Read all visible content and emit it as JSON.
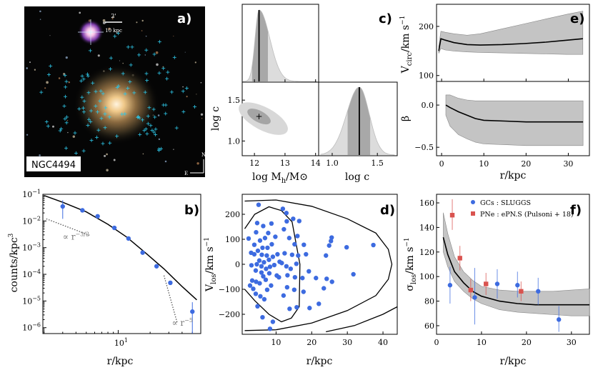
{
  "panels": {
    "a": {
      "letter": "a)",
      "galaxy_name": "NGC4494",
      "scale_arcmin": "2'",
      "scale_kpc": "10 kpc",
      "compass_n": "N",
      "compass_e": "E",
      "sky_color": "#050505",
      "marker_color": "#2ec7e8"
    },
    "b": {
      "letter": "b)"
    },
    "c": {
      "letter": "c)"
    },
    "d": {
      "letter": "d)"
    },
    "e": {
      "letter": "e)"
    },
    "f": {
      "letter": "f)"
    }
  },
  "colors": {
    "gc_blue": "#3d6be0",
    "pne_red": "#d9534f",
    "band_gray": "#b0b0b0"
  },
  "chart_data": [
    {
      "id": "b",
      "type": "scatter",
      "title": "",
      "xlabel": "r/kpc",
      "ylabel": "counts/kpc^3",
      "xscale": "log",
      "yscale": "log",
      "xlim": [
        1.95,
        60
      ],
      "ylim": [
        6e-07,
        0.1
      ],
      "xtick_labels": [
        "10^1"
      ],
      "ytick_labels": [
        "10^-6",
        "10^-5",
        "10^-4",
        "10^-3",
        "10^-2",
        "10^-1"
      ],
      "points": [
        {
          "x": 3.0,
          "y": 0.035,
          "ylo": 0.012,
          "yhi": 0.06
        },
        {
          "x": 4.6,
          "y": 0.025
        },
        {
          "x": 6.4,
          "y": 0.015
        },
        {
          "x": 9.2,
          "y": 0.0055
        },
        {
          "x": 12.5,
          "y": 0.0022
        },
        {
          "x": 17.0,
          "y": 0.00065
        },
        {
          "x": 23.0,
          "y": 0.0002
        },
        {
          "x": 31.0,
          "y": 4.8e-05
        },
        {
          "x": 50.0,
          "y": 4e-06,
          "ylo": 6e-07,
          "yhi": 9e-06
        }
      ],
      "model_curve": {
        "x": [
          2,
          3,
          5,
          8,
          12,
          18,
          27,
          40,
          55
        ],
        "y": [
          0.09,
          0.05,
          0.022,
          0.0075,
          0.0025,
          0.00065,
          0.00016,
          3.5e-05,
          1.1e-05
        ]
      },
      "annotations": [
        {
          "text": "∝ r^-3/2",
          "x": 3.0,
          "y": 0.002
        },
        {
          "text": "∝ r^-5",
          "x": 32,
          "y": 1.2e-06
        }
      ],
      "guide_lines": [
        {
          "x": [
            2.1,
            5.5
          ],
          "y": [
            0.012,
            0.0028
          ]
        },
        {
          "x": [
            27,
            36
          ],
          "y": [
            9e-05,
            1.5e-06
          ]
        }
      ]
    },
    {
      "id": "c",
      "type": "corner",
      "params": [
        "log M_h/M_⊙",
        "log c"
      ],
      "xlabel_left": "log M_h/M_⊙",
      "ylabel_left": "log c",
      "xlabel_right": "log c",
      "x1_ticks": [
        "12",
        "13",
        "14"
      ],
      "x1_lim": [
        11.6,
        14.1
      ],
      "x2_ticks": [
        "1.0",
        "1.5"
      ],
      "x2_lim": [
        0.85,
        1.72
      ],
      "y_ticks": [
        "1.0",
        "1.5"
      ],
      "y_lim": [
        0.82,
        1.72
      ],
      "mass_best": 12.15,
      "mass_median_lines": [
        11.9,
        12.2,
        12.45
      ],
      "conc_best": 1.3,
      "conc_median_lines": [
        1.17,
        1.3,
        1.42
      ],
      "joint_best": {
        "x": 12.15,
        "y": 1.3
      }
    },
    {
      "id": "d",
      "type": "scatter",
      "xlabel": "r/kpc",
      "ylabel": "V_los/km s^-1",
      "xlim": [
        0.5,
        44
      ],
      "ylim": [
        -280,
        280
      ],
      "xtick_labels": [
        "10",
        "20",
        "30",
        "40"
      ],
      "ytick_labels": [
        "-200",
        "-100",
        "0",
        "100",
        "200"
      ],
      "points": [
        [
          5.1,
          238
        ],
        [
          4.7,
          165
        ],
        [
          2.3,
          103
        ],
        [
          6.4,
          153
        ],
        [
          8.7,
          163
        ],
        [
          9.8,
          110
        ],
        [
          4.4,
          128
        ],
        [
          7.8,
          125
        ],
        [
          6.9,
          105
        ],
        [
          5.5,
          95
        ],
        [
          3.9,
          78
        ],
        [
          8.8,
          80
        ],
        [
          7.6,
          66
        ],
        [
          6.2,
          66
        ],
        [
          4.9,
          54
        ],
        [
          3.0,
          46
        ],
        [
          3.9,
          40
        ],
        [
          6.0,
          38
        ],
        [
          7.4,
          35
        ],
        [
          9.1,
          30
        ],
        [
          8.0,
          18
        ],
        [
          5.3,
          15
        ],
        [
          6.6,
          8
        ],
        [
          4.6,
          0
        ],
        [
          3.1,
          -4
        ],
        [
          5.9,
          -8
        ],
        [
          8.3,
          -10
        ],
        [
          9.5,
          -3
        ],
        [
          7.2,
          -18
        ],
        [
          4.3,
          -25
        ],
        [
          5.9,
          -33
        ],
        [
          8.1,
          -36
        ],
        [
          6.4,
          -48
        ],
        [
          3.3,
          -65
        ],
        [
          4.4,
          -70
        ],
        [
          5.4,
          -76
        ],
        [
          7.1,
          -62
        ],
        [
          2.7,
          -85
        ],
        [
          3.6,
          -98
        ],
        [
          4.3,
          -118
        ],
        [
          5.6,
          -128
        ],
        [
          6.7,
          -140
        ],
        [
          4.8,
          -168
        ],
        [
          7.5,
          -102
        ],
        [
          8.6,
          -85
        ],
        [
          10.2,
          -45
        ],
        [
          10.8,
          -52
        ],
        [
          11.0,
          10
        ],
        [
          10.4,
          40
        ],
        [
          11.9,
          222
        ],
        [
          12.9,
          205
        ],
        [
          13.0,
          172
        ],
        [
          14.8,
          182
        ],
        [
          16.5,
          173
        ],
        [
          12.2,
          140
        ],
        [
          13.7,
          105
        ],
        [
          16.0,
          113
        ],
        [
          15.2,
          80
        ],
        [
          17.8,
          78
        ],
        [
          12.4,
          44
        ],
        [
          14.5,
          38
        ],
        [
          16.2,
          35
        ],
        [
          18.4,
          40
        ],
        [
          11.6,
          5
        ],
        [
          12.9,
          -8
        ],
        [
          14.1,
          -18
        ],
        [
          15.7,
          2
        ],
        [
          13.2,
          -44
        ],
        [
          15.3,
          -52
        ],
        [
          17.4,
          -55
        ],
        [
          19.2,
          -28
        ],
        [
          13.1,
          -92
        ],
        [
          15.1,
          -102
        ],
        [
          17.7,
          -110
        ],
        [
          12.1,
          -125
        ],
        [
          13.8,
          -178
        ],
        [
          15.8,
          -172
        ],
        [
          19.4,
          -175
        ],
        [
          22.0,
          -158
        ],
        [
          23.4,
          -96
        ],
        [
          24.2,
          -58
        ],
        [
          21.2,
          -55
        ],
        [
          25.7,
          -70
        ],
        [
          24.0,
          35
        ],
        [
          25.4,
          93
        ],
        [
          25.6,
          107
        ],
        [
          24.9,
          75
        ],
        [
          29.8,
          68
        ],
        [
          31.7,
          -40
        ],
        [
          37.3,
          77
        ],
        [
          9.1,
          -230
        ],
        [
          8.3,
          -258
        ],
        [
          6.2,
          -212
        ]
      ],
      "contours": [
        {
          "x": [
            1.2,
            4,
            8,
            11.5,
            14.5,
            16.7,
            16.5,
            14.3,
            11.5,
            8,
            4,
            1.2
          ],
          "y": [
            142,
            200,
            230,
            215,
            170,
            0,
            -170,
            -215,
            -230,
            -200,
            -145,
            -100
          ]
        },
        {
          "x": [
            1.2,
            10,
            20,
            30,
            38,
            41.5,
            42.5,
            41.5,
            38,
            30,
            20,
            10,
            1.2
          ],
          "y": [
            253,
            257,
            232,
            182,
            125,
            60,
            0,
            -60,
            -125,
            -185,
            -235,
            -262,
            -265
          ]
        },
        {
          "x": [
            24,
            32,
            40,
            44
          ],
          "y": [
            -270,
            -245,
            -200,
            -170
          ]
        }
      ]
    },
    {
      "id": "e",
      "type": "area",
      "subplots": [
        {
          "ylabel": "V_circ/km s^-1",
          "xlim": [
            0,
            35
          ],
          "ylim": [
            88,
            245
          ],
          "ytick_labels": [
            "100",
            "200"
          ],
          "x": [
            0.5,
            1.0,
            2.0,
            4.0,
            7.0,
            10.0,
            15.0,
            20.0,
            25.0,
            30.0,
            33.5
          ],
          "median": [
            150,
            175,
            172,
            167,
            163,
            162,
            163,
            165,
            168,
            172,
            175
          ],
          "lower": [
            145,
            155,
            152,
            150,
            148,
            147,
            146,
            145,
            144,
            143,
            143
          ],
          "upper": [
            160,
            190,
            188,
            185,
            182,
            185,
            195,
            205,
            215,
            225,
            231
          ]
        },
        {
          "ylabel": "β",
          "xlabel": "r/kpc",
          "xlim": [
            -1.2,
            35
          ],
          "ylim": [
            -0.6,
            0.28
          ],
          "xtick_labels": [
            "0",
            "10",
            "20",
            "30"
          ],
          "ytick_labels": [
            "0.0",
            "-0.5"
          ],
          "x": [
            1.0,
            2.0,
            4.0,
            6.0,
            8.0,
            10.0,
            15.0,
            20.0,
            25.0,
            30.0,
            33.5
          ],
          "median": [
            0.0,
            -0.03,
            -0.08,
            -0.12,
            -0.16,
            -0.18,
            -0.19,
            -0.2,
            -0.2,
            -0.2,
            -0.2
          ],
          "lower": [
            -0.12,
            -0.25,
            -0.35,
            -0.4,
            -0.44,
            -0.46,
            -0.47,
            -0.48,
            -0.48,
            -0.48,
            -0.48
          ],
          "upper": [
            0.12,
            0.12,
            0.08,
            0.06,
            0.05,
            0.05,
            0.05,
            0.05,
            0.05,
            0.05,
            0.05
          ]
        }
      ]
    },
    {
      "id": "f",
      "type": "scatter",
      "xlabel": "r/kpc",
      "ylabel": "σ_los/km s^-1",
      "xlim": [
        0,
        34
      ],
      "ylim": [
        53,
        167
      ],
      "xtick_labels": [
        "0",
        "10",
        "20",
        "30"
      ],
      "ytick_labels": [
        "60",
        "80",
        "100",
        "120",
        "140",
        "160"
      ],
      "legend": [
        "GCs : SLUGGS",
        "PNe : ePN.S (Pulsoni + 18)"
      ],
      "legend_position": "top-right",
      "series": [
        {
          "name": "GCs : SLUGGS",
          "marker": "circle",
          "points": [
            [
              3.0,
              93,
              78,
              108
            ],
            [
              8.5,
              83,
              61,
              107
            ],
            [
              13.5,
              94,
              82,
              106
            ],
            [
              18.0,
              93,
              83,
              104
            ],
            [
              22.6,
              88,
              77,
              99
            ],
            [
              27.2,
              65,
              55,
              76
            ]
          ]
        },
        {
          "name": "PNe : ePN.S (Pulsoni + 18)",
          "marker": "square",
          "points": [
            [
              3.5,
              150,
              138,
              163
            ],
            [
              5.2,
              115,
              105,
              125
            ],
            [
              7.6,
              89,
              80,
              98
            ],
            [
              11.0,
              94,
              85,
              103
            ],
            [
              18.8,
              88,
              80,
              96
            ]
          ]
        }
      ],
      "median": {
        "x": [
          1.5,
          2.5,
          4,
          6,
          8,
          10,
          14,
          18,
          22,
          26,
          30,
          34
        ],
        "y": [
          132,
          118,
          104,
          95,
          88,
          84,
          80,
          78,
          77,
          77,
          77,
          77
        ]
      },
      "band": {
        "x": [
          1.5,
          2.5,
          4,
          6,
          8,
          10,
          14,
          18,
          22,
          26,
          30,
          34
        ],
        "lower": [
          120,
          108,
          96,
          88,
          82,
          78,
          73,
          71,
          70,
          69,
          68,
          68
        ],
        "upper": [
          152,
          135,
          116,
          104,
          97,
          92,
          89,
          88,
          88,
          88,
          89,
          90
        ]
      }
    }
  ]
}
